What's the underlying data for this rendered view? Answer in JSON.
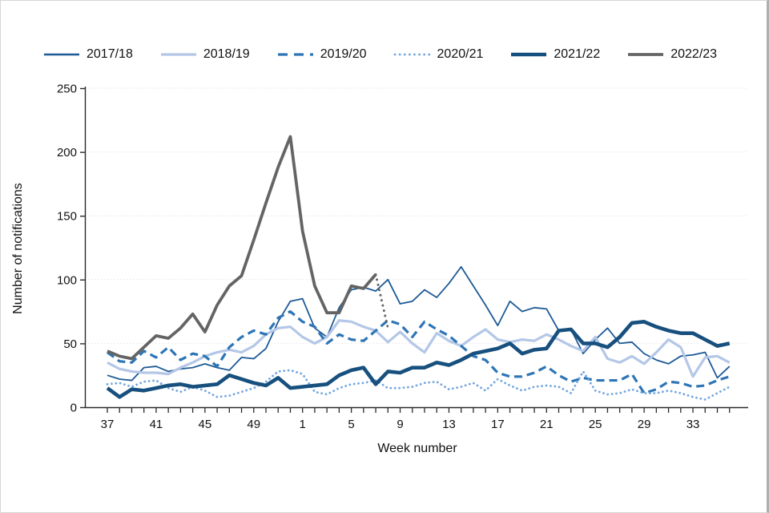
{
  "chart_data": {
    "type": "line",
    "title": "",
    "xlabel": "Week number",
    "ylabel": "Number of notifications",
    "ylim": [
      0,
      250
    ],
    "yticks": [
      0,
      50,
      100,
      150,
      200,
      250
    ],
    "grid": "horizontal light gridlines",
    "legend_position": "top",
    "categories": [
      37,
      38,
      39,
      40,
      41,
      42,
      43,
      44,
      45,
      46,
      47,
      48,
      49,
      50,
      51,
      52,
      1,
      2,
      3,
      4,
      5,
      6,
      7,
      8,
      9,
      10,
      11,
      12,
      13,
      14,
      15,
      16,
      17,
      18,
      19,
      20,
      21,
      22,
      23,
      24,
      25,
      26,
      27,
      28,
      29,
      30,
      31,
      32,
      33,
      34,
      35,
      36
    ],
    "xticks": {
      "indices": [
        0,
        4,
        8,
        12,
        16,
        20,
        24,
        28,
        32,
        36,
        40,
        44,
        48
      ],
      "labels": [
        "37",
        "41",
        "45",
        "49",
        "1",
        "5",
        "9",
        "13",
        "17",
        "21",
        "25",
        "29",
        "33"
      ]
    },
    "series": [
      {
        "name": "2017/18",
        "color": "#1d5a96",
        "width": 1.8,
        "dash": "solid",
        "values": [
          25,
          22,
          21,
          31,
          32,
          28,
          30,
          31,
          34,
          31,
          29,
          39,
          38,
          46,
          67,
          83,
          85,
          62,
          55,
          78,
          92,
          94,
          91,
          100,
          81,
          83,
          92,
          86,
          97,
          110,
          95,
          80,
          64,
          83,
          75,
          78,
          77,
          60,
          61,
          42,
          53,
          62,
          50,
          51,
          42,
          37,
          34,
          40,
          41,
          43,
          23,
          32
        ]
      },
      {
        "name": "2018/19",
        "color": "#b4c7e7",
        "width": 3.2,
        "dash": "solid",
        "values": [
          35,
          30,
          28,
          27,
          27,
          26,
          31,
          35,
          40,
          43,
          45,
          43,
          48,
          57,
          62,
          63,
          55,
          50,
          55,
          68,
          67,
          63,
          60,
          51,
          59,
          50,
          43,
          58,
          52,
          48,
          55,
          61,
          53,
          51,
          53,
          52,
          57,
          53,
          48,
          44,
          55,
          38,
          35,
          40,
          34,
          43,
          53,
          47,
          24,
          39,
          40,
          35
        ]
      },
      {
        "name": "2019/20",
        "color": "#2e75b6",
        "width": 3.2,
        "dash": "dashed",
        "values": [
          43,
          36,
          35,
          44,
          39,
          47,
          37,
          42,
          40,
          32,
          47,
          55,
          60,
          57,
          70,
          75,
          67,
          63,
          50,
          57,
          53,
          52,
          60,
          68,
          65,
          55,
          67,
          61,
          56,
          48,
          40,
          37,
          27,
          24,
          24,
          27,
          32,
          25,
          20,
          23,
          21,
          21,
          21,
          26,
          11,
          14,
          20,
          19,
          16,
          17,
          21,
          24
        ]
      },
      {
        "name": "2020/21",
        "color": "#74a7de",
        "width": 2.8,
        "dash": "dotted",
        "values": [
          18,
          19,
          16,
          20,
          21,
          15,
          12,
          16,
          13,
          8,
          9,
          12,
          15,
          20,
          28,
          29,
          26,
          12,
          10,
          15,
          18,
          19,
          21,
          15,
          15,
          16,
          19,
          20,
          14,
          16,
          19,
          13,
          22,
          17,
          13,
          16,
          17,
          16,
          11,
          28,
          13,
          10,
          11,
          14,
          11,
          11,
          13,
          11,
          8,
          6,
          11,
          16
        ]
      },
      {
        "name": "2021/22",
        "color": "#17507e",
        "width": 4.6,
        "dash": "solid",
        "values": [
          15,
          8,
          14,
          13,
          15,
          17,
          18,
          16,
          17,
          18,
          25,
          22,
          19,
          17,
          23,
          15,
          16,
          17,
          18,
          25,
          29,
          31,
          18,
          28,
          27,
          31,
          31,
          35,
          33,
          37,
          42,
          44,
          46,
          50,
          42,
          45,
          46,
          60,
          61,
          50,
          50,
          47,
          55,
          66,
          67,
          63,
          60,
          58,
          58,
          53,
          48,
          50
        ]
      },
      {
        "name": "2022/23",
        "color": "#646464",
        "width": 3.8,
        "dash": "solid",
        "dotted_tail_segments": 1,
        "values": [
          44,
          40,
          38,
          47,
          56,
          54,
          62,
          73,
          59,
          80,
          95,
          103,
          131,
          160,
          188,
          212,
          138,
          95,
          74,
          74,
          95,
          93,
          104,
          62,
          null,
          null,
          null,
          null,
          null,
          null,
          null,
          null,
          null,
          null,
          null,
          null,
          null,
          null,
          null,
          null,
          null,
          null,
          null,
          null,
          null,
          null,
          null,
          null,
          null,
          null,
          null,
          null
        ]
      }
    ]
  }
}
